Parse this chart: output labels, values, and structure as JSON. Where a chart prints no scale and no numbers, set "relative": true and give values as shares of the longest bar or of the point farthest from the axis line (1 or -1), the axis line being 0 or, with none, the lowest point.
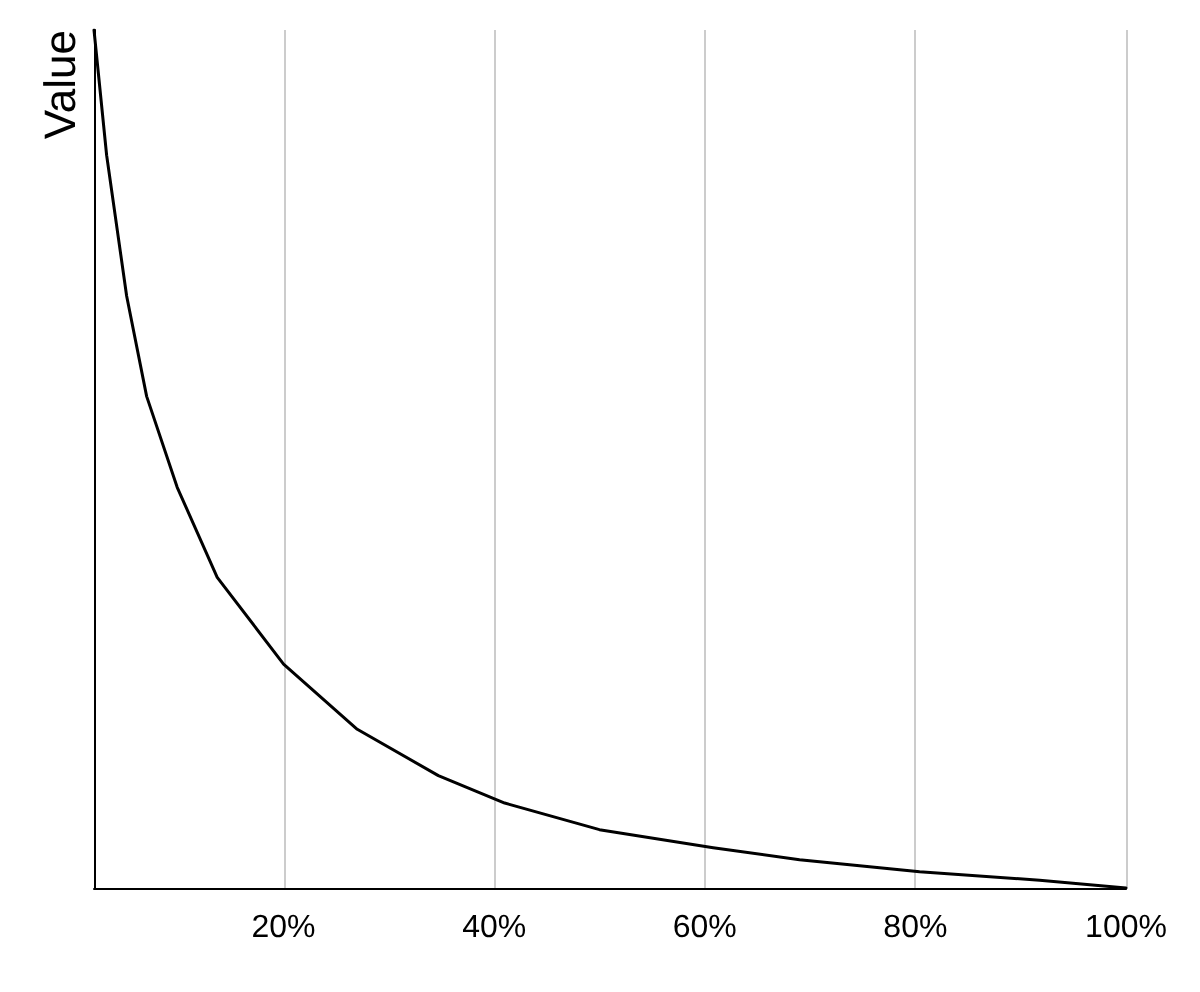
{
  "chart_data": {
    "type": "line",
    "ylabel": "Value",
    "relative": true,
    "tick_labels": "x",
    "grid": "x",
    "marker": "none",
    "line_style": "solid",
    "x": [
      2,
      3.2,
      5.1,
      7,
      9.9,
      13.7,
      20,
      27,
      34.7,
      41,
      50,
      60.8,
      69,
      80.4,
      91.8,
      100
    ],
    "xlim": [
      2,
      100
    ],
    "xticks": [
      {
        "value": 20,
        "label": "20%"
      },
      {
        "value": 40,
        "label": "40%"
      },
      {
        "value": 60,
        "label": "60%"
      },
      {
        "value": 80,
        "label": "80%"
      },
      {
        "value": 100,
        "label": "100%"
      }
    ],
    "series": [
      {
        "color": "#000000",
        "values": [
          1,
          0.854,
          0.69,
          0.573,
          0.467,
          0.362,
          0.261,
          0.185,
          0.131,
          0.099,
          0.068,
          0.047,
          0.033,
          0.019,
          0.009,
          0
        ]
      }
    ]
  }
}
